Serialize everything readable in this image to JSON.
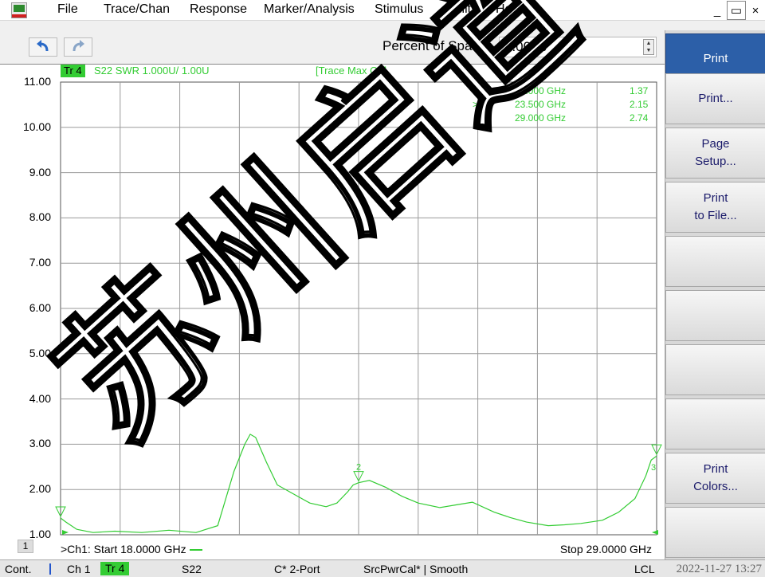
{
  "menu": {
    "items": [
      "File",
      "Trace/Chan",
      "Response",
      "Marker/Analysis",
      "Stimulus",
      "Utility",
      "Help"
    ],
    "window_controls": [
      "_",
      "▭",
      "×"
    ]
  },
  "toolbar": {
    "undo_icon": "undo-icon",
    "redo_icon": "redo-icon",
    "entry_label": "Percent of Span",
    "entry_value": "3.00 %"
  },
  "trace": {
    "tag": "Tr 4",
    "description": "S22 SWR 1.000U/  1.00U",
    "status": "[Trace Max On]",
    "color": "#33cc33"
  },
  "markers": [
    {
      "active": "",
      "id": "1:",
      "freq": "18.000 GHz",
      "value": "1.37"
    },
    {
      "active": ">",
      "id": "2:",
      "freq": "23.500 GHz",
      "value": "2.15"
    },
    {
      "active": "",
      "id": "3:",
      "freq": "29.000 GHz",
      "value": "2.74"
    }
  ],
  "marker_labels": [
    "2",
    "3"
  ],
  "channel": {
    "number": "1",
    "start_label": ">Ch1: Start  18.0000 GHz",
    "stop_label": "Stop  29.0000 GHz"
  },
  "softkeys": {
    "print_active": "Print",
    "print_dialog": "Print...",
    "page_setup_1": "Page",
    "page_setup_2": "Setup...",
    "print_to_file_1": "Print",
    "print_to_file_2": "to File...",
    "print_colors_1": "Print",
    "print_colors_2": "Colors..."
  },
  "statusbar": {
    "mode": "Cont.",
    "channel": "Ch 1",
    "trace": "Tr 4",
    "param": "S22",
    "cal": "C* 2-Port",
    "srcpwr": "SrcPwrCal* | Smooth",
    "lcl": "LCL",
    "datetime": "2022-11-27 13:27"
  },
  "watermark_text": "苏州启道",
  "chart_data": {
    "type": "line",
    "x_unit": "GHz",
    "xlim": [
      18.0,
      29.0
    ],
    "ylim": [
      1.0,
      11.0
    ],
    "yticks": [
      "11.00",
      "10.00",
      "9.00",
      "8.00",
      "7.00",
      "6.00",
      "5.00",
      "4.00",
      "3.00",
      "2.00",
      "1.00"
    ],
    "grid": true,
    "series": [
      {
        "x": [
          18.0,
          18.1,
          18.3,
          18.6,
          19.0,
          19.5,
          20.0,
          20.5,
          20.9,
          21.0,
          21.2,
          21.4,
          21.5,
          21.6,
          21.8,
          22.0,
          22.3,
          22.6,
          22.9,
          23.1,
          23.3,
          23.4,
          23.5,
          23.7,
          24.0,
          24.3,
          24.6,
          25.0,
          25.3,
          25.6,
          26.0,
          26.3,
          26.6,
          27.0,
          27.3,
          27.6,
          28.0,
          28.3,
          28.6,
          28.8,
          28.9,
          29.0
        ],
        "y": [
          1.37,
          1.28,
          1.12,
          1.05,
          1.08,
          1.05,
          1.1,
          1.05,
          1.2,
          1.6,
          2.4,
          3.0,
          3.22,
          3.15,
          2.6,
          2.1,
          1.9,
          1.7,
          1.62,
          1.7,
          1.95,
          2.1,
          2.15,
          2.2,
          2.05,
          1.85,
          1.7,
          1.6,
          1.66,
          1.72,
          1.5,
          1.38,
          1.28,
          1.2,
          1.22,
          1.25,
          1.32,
          1.5,
          1.8,
          2.3,
          2.65,
          2.74
        ]
      }
    ]
  }
}
